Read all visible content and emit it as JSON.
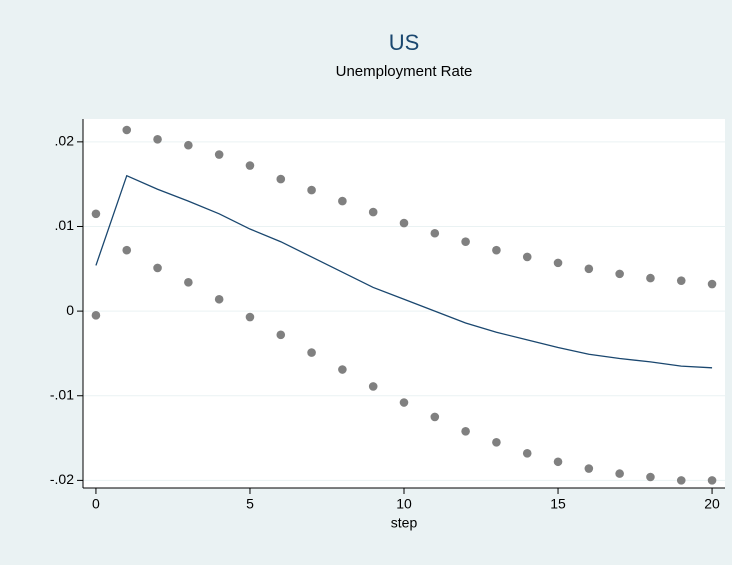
{
  "chart_data": {
    "type": "line",
    "title": "US",
    "subtitle": "Unemployment Rate",
    "xlabel": "step",
    "x": [
      0,
      1,
      2,
      3,
      4,
      5,
      6,
      7,
      8,
      9,
      10,
      11,
      12,
      13,
      14,
      15,
      16,
      17,
      18,
      19,
      20
    ],
    "series": [
      {
        "color": "#1a476f",
        "style": "line",
        "values": [
          0.0054,
          0.016,
          0.0144,
          0.013,
          0.0115,
          0.0097,
          0.0082,
          0.0064,
          0.0046,
          0.0028,
          0.0014,
          0.0,
          -0.0014,
          -0.0025,
          -0.0034,
          -0.0043,
          -0.0051,
          -0.0056,
          -0.006,
          -0.0065,
          -0.0067
        ]
      },
      {
        "color": "#808080",
        "style": "dots",
        "values": [
          0.0115,
          0.0214,
          0.0203,
          0.0196,
          0.0185,
          0.0172,
          0.0156,
          0.0143,
          0.013,
          0.0117,
          0.0104,
          0.0092,
          0.0082,
          0.0072,
          0.0064,
          0.0057,
          0.005,
          0.0044,
          0.0039,
          0.0036,
          0.0032
        ]
      },
      {
        "color": "#808080",
        "style": "dots",
        "values": [
          -0.0005,
          0.0072,
          0.0051,
          0.0034,
          0.0014,
          -0.0007,
          -0.0028,
          -0.0049,
          -0.0069,
          -0.0089,
          -0.0108,
          -0.0125,
          -0.0142,
          -0.0155,
          -0.0168,
          -0.0178,
          -0.0186,
          -0.0192,
          -0.0196,
          -0.02,
          -0.02
        ]
      }
    ],
    "xlim": [
      -0.42,
      20.42
    ],
    "xticks": [
      0,
      5,
      10,
      15,
      20
    ],
    "ylim": [
      -0.0209,
      0.0227
    ],
    "yticks": [
      {
        "value": -0.02,
        "label": "-.02"
      },
      {
        "value": -0.01,
        "label": "-.01"
      },
      0,
      {
        "value": 0.01,
        "label": ".01"
      },
      {
        "value": 0.02,
        "label": ".02"
      }
    ],
    "grid": true
  }
}
